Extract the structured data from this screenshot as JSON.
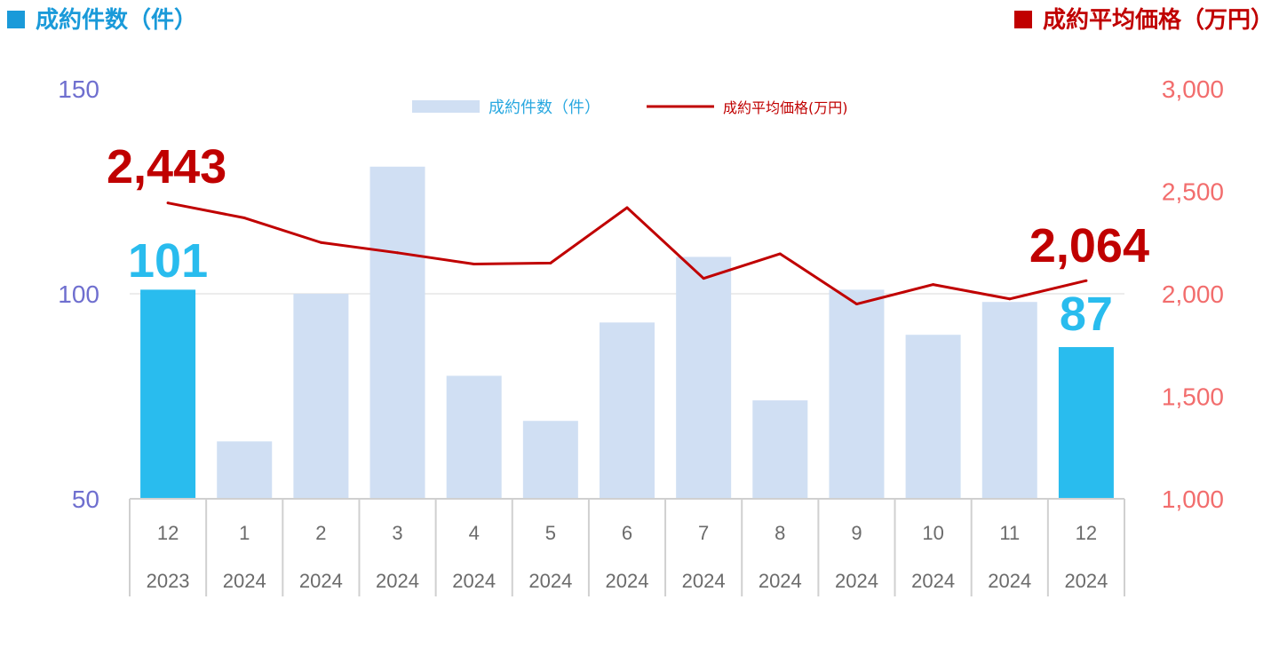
{
  "header": {
    "left_title": "成約件数（件）",
    "right_title": "成約平均価格（万円）",
    "left_color": "#1a9ad9",
    "right_color": "#c00000"
  },
  "chart_data": {
    "type": "bar",
    "categories": [
      {
        "month": "12",
        "year": "2023"
      },
      {
        "month": "1",
        "year": "2024"
      },
      {
        "month": "2",
        "year": "2024"
      },
      {
        "month": "3",
        "year": "2024"
      },
      {
        "month": "4",
        "year": "2024"
      },
      {
        "month": "5",
        "year": "2024"
      },
      {
        "month": "6",
        "year": "2024"
      },
      {
        "month": "7",
        "year": "2024"
      },
      {
        "month": "8",
        "year": "2024"
      },
      {
        "month": "9",
        "year": "2024"
      },
      {
        "month": "10",
        "year": "2024"
      },
      {
        "month": "11",
        "year": "2024"
      },
      {
        "month": "12",
        "year": "2024"
      }
    ],
    "series": [
      {
        "name": "成約件数（件）",
        "type": "bar",
        "axis": "left",
        "values": [
          101,
          64,
          100,
          131,
          80,
          69,
          93,
          109,
          74,
          101,
          90,
          98,
          87
        ],
        "color": "#d0dff3",
        "highlight_color": "#29bcee",
        "highlight_indices": [
          0,
          12
        ]
      },
      {
        "name": "成約平均価格(万円)",
        "type": "line",
        "axis": "right",
        "values": [
          2443,
          2370,
          2250,
          2200,
          2145,
          2150,
          2420,
          2075,
          2195,
          1950,
          2045,
          1975,
          2064
        ],
        "color": "#c00000"
      }
    ],
    "left_axis": {
      "min": 50,
      "max": 150,
      "ticks": [
        "50",
        "100",
        "150"
      ],
      "color": "#6f6fcf"
    },
    "right_axis": {
      "min": 1000,
      "max": 3000,
      "ticks": [
        "1,000",
        "1,500",
        "2,000",
        "2,500",
        "3,000"
      ],
      "color": "#f26d6d"
    },
    "annotations": {
      "first_bar": "101",
      "last_bar": "87",
      "first_price": "2,443",
      "last_price": "2,064"
    },
    "grid": "horizontal line at 100",
    "legend": "top-center"
  }
}
